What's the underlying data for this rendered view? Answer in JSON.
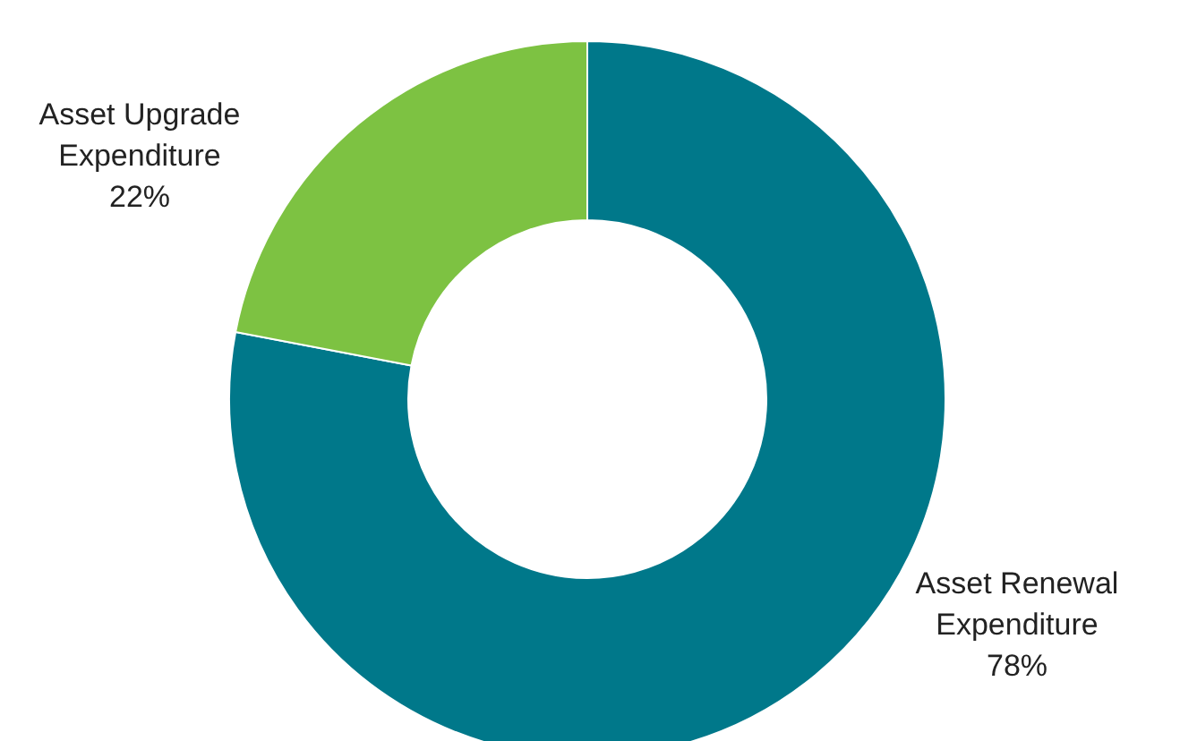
{
  "chart_data": {
    "type": "donut",
    "categories": [
      "Asset Renewal Expenditure",
      "Asset Upgrade Expenditure"
    ],
    "values": [
      78,
      22
    ],
    "value_labels": [
      "78%",
      "22%"
    ],
    "colors": [
      "#00788a",
      "#7dc242"
    ]
  }
}
